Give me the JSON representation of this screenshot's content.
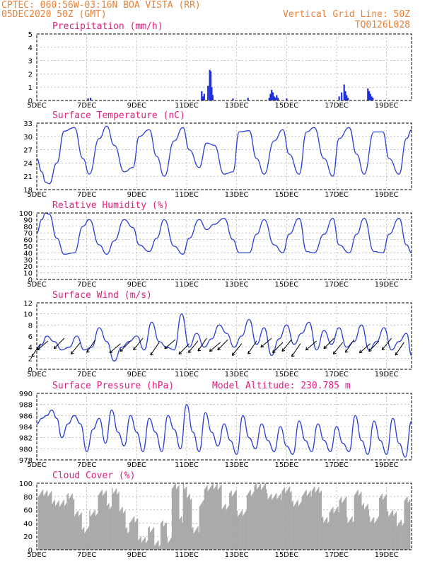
{
  "header": {
    "line1": "CPTEC:   060:56W-03:16N  BOA VISTA (RR)",
    "line2": "05DEC2020 50Z (GMT)",
    "right1": "Vertical Grid Line: 50Z",
    "right2": "TQ0126L028"
  },
  "x_ticks": [
    "5DEC",
    "7DEC",
    "9DEC",
    "11DEC",
    "13DEC",
    "15DEC",
    "17DEC",
    "19DEC"
  ],
  "colors": {
    "header": "#e8823a",
    "panel_title": "#e0207f",
    "series": "#2c3fd6",
    "precip_bars": "#1f2fd8",
    "cloud_bars": "#a9a9a9"
  },
  "chart_data": [
    {
      "type": "bar",
      "title": "Precipitation (mm/h)",
      "x": [
        11.7,
        11.85,
        11.92,
        11.96,
        12.0,
        12.04,
        11.6,
        11.65,
        14.3,
        14.35,
        14.4,
        14.45,
        14.5,
        14.55,
        14.6,
        14.65,
        17.1,
        17.2,
        17.3,
        17.35,
        17.4,
        17.45,
        18.25,
        18.3,
        18.35,
        18.4,
        18.45,
        7.05,
        7.15,
        12.85,
        13.45,
        15.0
      ],
      "values": [
        0.5,
        1.1,
        2.3,
        2.2,
        1.0,
        0.4,
        0.7,
        0.3,
        0.2,
        0.5,
        0.8,
        0.6,
        0.3,
        0.2,
        0.4,
        0.2,
        0.3,
        0.6,
        1.2,
        0.7,
        0.4,
        0.2,
        0.9,
        0.7,
        0.5,
        0.3,
        0.2,
        0.15,
        0.2,
        0.15,
        0.2,
        0.15
      ],
      "xlim": [
        5,
        20
      ],
      "ylim": [
        0,
        5
      ],
      "yticks": [
        0,
        1,
        2,
        3,
        4,
        5
      ]
    },
    {
      "type": "line",
      "title": "Surface Temperature (nC)",
      "x": [
        5.0,
        5.2,
        5.35,
        5.5,
        5.8,
        6.1,
        6.5,
        6.85,
        7.1,
        7.5,
        7.8,
        8.1,
        8.5,
        8.85,
        9.1,
        9.5,
        9.8,
        10.1,
        10.5,
        10.85,
        11.1,
        11.5,
        11.8,
        12.1,
        12.5,
        12.85,
        13.1,
        13.5,
        13.8,
        14.1,
        14.5,
        14.85,
        15.1,
        15.5,
        15.8,
        16.1,
        16.5,
        16.85,
        17.1,
        17.5,
        17.8,
        18.1,
        18.5,
        18.85,
        19.1,
        19.5,
        19.8,
        20.0
      ],
      "values": [
        25.0,
        22.0,
        19.7,
        19.3,
        24.0,
        31.2,
        32.0,
        25.0,
        21.5,
        29.5,
        32.3,
        28.0,
        22.0,
        23.0,
        30.0,
        31.5,
        25.5,
        21.0,
        29.0,
        32.0,
        27.0,
        23.0,
        28.5,
        28.0,
        21.5,
        22.0,
        31.0,
        31.3,
        25.0,
        21.5,
        29.0,
        31.5,
        26.0,
        21.5,
        31.0,
        32.0,
        25.0,
        21.0,
        29.5,
        32.0,
        26.0,
        21.5,
        31.0,
        31.0,
        25.0,
        21.5,
        29.5,
        31.5
      ],
      "xlim": [
        5,
        20
      ],
      "ylim": [
        18,
        33
      ],
      "yticks": [
        18,
        21,
        24,
        27,
        30,
        33
      ]
    },
    {
      "type": "line",
      "title": "Relative Humidity (%)",
      "x": [
        5.0,
        5.2,
        5.35,
        5.5,
        5.8,
        6.1,
        6.5,
        6.85,
        7.1,
        7.5,
        7.8,
        8.1,
        8.5,
        8.85,
        9.1,
        9.5,
        9.8,
        10.1,
        10.5,
        10.85,
        11.1,
        11.5,
        11.8,
        12.1,
        12.5,
        12.85,
        13.1,
        13.5,
        13.8,
        14.1,
        14.5,
        14.85,
        15.1,
        15.5,
        15.8,
        16.1,
        16.5,
        16.85,
        17.1,
        17.5,
        17.8,
        18.1,
        18.5,
        18.85,
        19.1,
        19.5,
        19.8,
        20.0
      ],
      "values": [
        70,
        90,
        100,
        98,
        62,
        38,
        40,
        80,
        90,
        52,
        38,
        58,
        90,
        78,
        52,
        42,
        62,
        90,
        50,
        38,
        62,
        90,
        75,
        83,
        92,
        60,
        40,
        40,
        68,
        90,
        52,
        40,
        68,
        92,
        42,
        40,
        68,
        92,
        52,
        40,
        68,
        92,
        42,
        40,
        68,
        92,
        52,
        40
      ],
      "xlim": [
        5,
        20
      ],
      "ylim": [
        0,
        100
      ],
      "yticks": [
        0,
        10,
        20,
        30,
        40,
        50,
        60,
        70,
        80,
        90,
        100
      ]
    },
    {
      "type": "line",
      "title": "Surface Wind (m/s)",
      "x": [
        5.0,
        5.2,
        5.4,
        5.7,
        6.0,
        6.3,
        6.6,
        6.9,
        7.2,
        7.5,
        7.8,
        8.1,
        8.4,
        8.7,
        9.0,
        9.3,
        9.6,
        9.9,
        10.2,
        10.5,
        10.8,
        11.1,
        11.4,
        11.7,
        12.0,
        12.3,
        12.6,
        12.9,
        13.2,
        13.5,
        13.8,
        14.1,
        14.4,
        14.7,
        15.0,
        15.3,
        15.6,
        15.9,
        16.2,
        16.5,
        16.8,
        17.1,
        17.4,
        17.7,
        18.0,
        18.3,
        18.6,
        18.9,
        19.2,
        19.5,
        19.8,
        20.0
      ],
      "values": [
        3.5,
        4.5,
        6.0,
        5.0,
        3.5,
        4.0,
        6.0,
        3.5,
        4.0,
        7.5,
        5.0,
        1.5,
        4.0,
        5.0,
        6.0,
        3.5,
        8.5,
        5.0,
        4.0,
        3.5,
        10.0,
        4.0,
        6.5,
        4.0,
        5.5,
        8.0,
        6.5,
        4.0,
        6.0,
        9.0,
        4.5,
        7.5,
        2.5,
        5.5,
        8.0,
        4.5,
        6.5,
        8.5,
        3.5,
        7.0,
        4.5,
        7.5,
        4.0,
        5.0,
        8.0,
        3.5,
        5.0,
        7.5,
        3.5,
        5.0,
        6.5,
        2.5
      ],
      "arrows_x": [
        5.15,
        5.45,
        6.1,
        6.75,
        7.35,
        8.35,
        8.75,
        9.25,
        9.9,
        10.55,
        11.1,
        11.45,
        11.8,
        12.35,
        12.65,
        13.2,
        13.8,
        14.4,
        14.85,
        15.2,
        15.55,
        16.2,
        16.9,
        17.25,
        17.7,
        18.35,
        18.7,
        19.2,
        19.7
      ],
      "xlim": [
        5,
        20
      ],
      "ylim": [
        0,
        12
      ],
      "yticks": [
        0,
        2,
        4,
        6,
        8,
        10,
        12
      ]
    },
    {
      "type": "line",
      "title": "Surface Pressure (hPa)",
      "annotation": "Model Altitude: 230.785 m",
      "x": [
        5.0,
        5.2,
        5.4,
        5.6,
        5.8,
        6.0,
        6.25,
        6.5,
        6.75,
        7.0,
        7.25,
        7.5,
        7.75,
        8.0,
        8.25,
        8.5,
        8.75,
        9.0,
        9.25,
        9.5,
        9.75,
        10.0,
        10.25,
        10.5,
        10.75,
        11.0,
        11.25,
        11.5,
        11.75,
        12.0,
        12.25,
        12.5,
        12.75,
        13.0,
        13.25,
        13.5,
        13.75,
        14.0,
        14.25,
        14.5,
        14.75,
        15.0,
        15.25,
        15.5,
        15.75,
        16.0,
        16.25,
        16.5,
        16.75,
        17.0,
        17.25,
        17.5,
        17.75,
        18.0,
        18.25,
        18.5,
        18.75,
        19.0,
        19.25,
        19.5,
        19.75,
        20.0
      ],
      "values": [
        984.5,
        985.5,
        986.0,
        987.0,
        985.5,
        982.0,
        984.5,
        986.0,
        984.5,
        979.5,
        983.5,
        985.5,
        981.0,
        987.0,
        983.0,
        980.5,
        986.0,
        983.0,
        979.5,
        985.5,
        983.0,
        979.5,
        986.0,
        983.5,
        980.0,
        988.0,
        983.0,
        979.5,
        986.5,
        983.0,
        980.5,
        984.5,
        981.5,
        979.0,
        986.0,
        982.0,
        980.0,
        984.5,
        981.5,
        979.5,
        984.0,
        980.5,
        979.0,
        985.0,
        981.5,
        979.5,
        984.5,
        981.5,
        979.5,
        984.0,
        981.0,
        979.5,
        986.0,
        981.5,
        979.0,
        985.0,
        981.5,
        979.0,
        985.5,
        981.0,
        978.5,
        985.0
      ],
      "xlim": [
        5,
        20
      ],
      "ylim": [
        978,
        990
      ],
      "yticks": [
        978,
        980,
        982,
        984,
        986,
        988,
        990
      ]
    },
    {
      "type": "bar",
      "title": "Cloud Cover (%)",
      "segments": [
        {
          "x0": 5.05,
          "x1": 5.6,
          "v": 85
        },
        {
          "x0": 5.6,
          "x1": 6.2,
          "v": 70
        },
        {
          "x0": 6.2,
          "x1": 6.5,
          "v": 80
        },
        {
          "x0": 6.5,
          "x1": 6.8,
          "v": 55
        },
        {
          "x0": 6.8,
          "x1": 7.1,
          "v": 30
        },
        {
          "x0": 7.1,
          "x1": 7.45,
          "v": 55
        },
        {
          "x0": 7.45,
          "x1": 7.8,
          "v": 85
        },
        {
          "x0": 7.8,
          "x1": 8.0,
          "v": 65
        },
        {
          "x0": 8.0,
          "x1": 8.3,
          "v": 88
        },
        {
          "x0": 8.3,
          "x1": 8.55,
          "v": 60
        },
        {
          "x0": 8.55,
          "x1": 8.7,
          "v": 30
        },
        {
          "x0": 8.7,
          "x1": 9.05,
          "v": 45
        },
        {
          "x0": 9.05,
          "x1": 9.45,
          "v": 15
        },
        {
          "x0": 9.45,
          "x1": 9.7,
          "v": 30
        },
        {
          "x0": 9.7,
          "x1": 9.95,
          "v": 10
        },
        {
          "x0": 9.95,
          "x1": 10.2,
          "v": 40
        },
        {
          "x0": 10.2,
          "x1": 10.4,
          "v": 15
        },
        {
          "x0": 10.4,
          "x1": 10.7,
          "v": 95
        },
        {
          "x0": 10.7,
          "x1": 10.85,
          "v": 45
        },
        {
          "x0": 10.85,
          "x1": 11.0,
          "v": 95
        },
        {
          "x0": 11.0,
          "x1": 11.2,
          "v": 80
        },
        {
          "x0": 11.2,
          "x1": 11.5,
          "v": 30
        },
        {
          "x0": 11.5,
          "x1": 11.7,
          "v": 70
        },
        {
          "x0": 11.7,
          "x1": 12.0,
          "v": 92
        },
        {
          "x0": 12.0,
          "x1": 12.4,
          "v": 95
        },
        {
          "x0": 12.4,
          "x1": 12.7,
          "v": 65
        },
        {
          "x0": 12.7,
          "x1": 13.0,
          "v": 85
        },
        {
          "x0": 13.0,
          "x1": 13.4,
          "v": 55
        },
        {
          "x0": 13.4,
          "x1": 13.7,
          "v": 85
        },
        {
          "x0": 13.7,
          "x1": 14.2,
          "v": 95
        },
        {
          "x0": 14.2,
          "x1": 14.8,
          "v": 80
        },
        {
          "x0": 14.8,
          "x1": 15.2,
          "v": 90
        },
        {
          "x0": 15.2,
          "x1": 15.6,
          "v": 70
        },
        {
          "x0": 15.6,
          "x1": 16.0,
          "v": 85
        },
        {
          "x0": 16.0,
          "x1": 16.4,
          "v": 90
        },
        {
          "x0": 16.4,
          "x1": 16.7,
          "v": 45
        },
        {
          "x0": 16.7,
          "x1": 17.1,
          "v": 60
        },
        {
          "x0": 17.1,
          "x1": 17.4,
          "v": 75
        },
        {
          "x0": 17.4,
          "x1": 17.7,
          "v": 45
        },
        {
          "x0": 17.7,
          "x1": 18.0,
          "v": 85
        },
        {
          "x0": 18.0,
          "x1": 18.3,
          "v": 65
        },
        {
          "x0": 18.3,
          "x1": 18.7,
          "v": 45
        },
        {
          "x0": 18.7,
          "x1": 19.0,
          "v": 80
        },
        {
          "x0": 19.0,
          "x1": 19.4,
          "v": 55
        },
        {
          "x0": 19.4,
          "x1": 19.7,
          "v": 40
        },
        {
          "x0": 19.7,
          "x1": 19.95,
          "v": 75
        }
      ],
      "xlim": [
        5,
        20
      ],
      "ylim": [
        0,
        100
      ],
      "yticks": [
        0,
        20,
        40,
        60,
        80,
        100
      ]
    }
  ]
}
